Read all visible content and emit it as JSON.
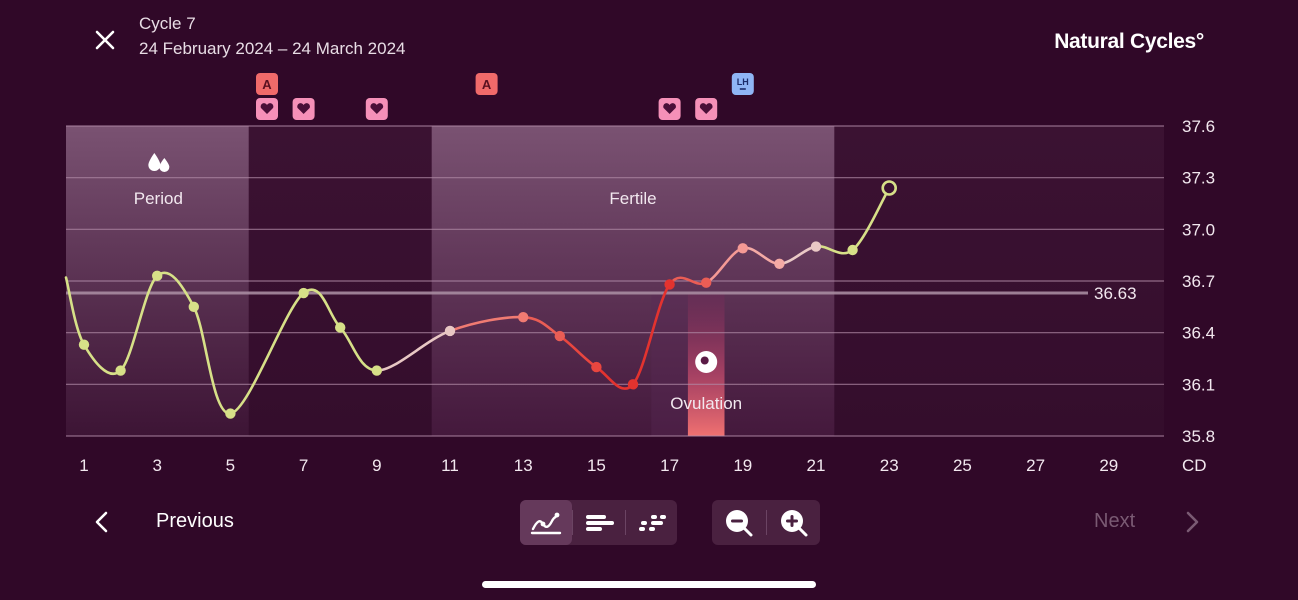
{
  "header": {
    "close_icon": "close-icon",
    "cycle_title": "Cycle 7",
    "date_range": "24 February 2024 – 24 March 2024",
    "brand": "Natural Cycles°"
  },
  "chart_data": {
    "type": "line",
    "xlabel": "CD",
    "ylim": [
      35.8,
      37.6
    ],
    "y_ticks": [
      "37.6",
      "37.3",
      "37.0",
      "36.7",
      "36.4",
      "36.1",
      "35.8"
    ],
    "x_ticks": [
      "1",
      "3",
      "5",
      "7",
      "9",
      "11",
      "13",
      "15",
      "17",
      "19",
      "21",
      "23",
      "25",
      "27",
      "29"
    ],
    "x_range": [
      1,
      30
    ],
    "grid": true,
    "coverline": {
      "value": 36.63,
      "label": "36.63"
    },
    "phases": [
      {
        "name": "period",
        "label": "Period",
        "icon": "drops-icon",
        "from": 1,
        "to": 5
      },
      {
        "name": "fertile",
        "label": "Fertile",
        "from": 11,
        "to": 21
      },
      {
        "name": "ovulation",
        "label": "Ovulation",
        "icon": "egg-icon",
        "day": 18
      }
    ],
    "series": [
      {
        "points": [
          {
            "x": 1,
            "y": 36.33,
            "color": "#d7e088"
          },
          {
            "x": 2,
            "y": 36.18,
            "color": "#d7e088"
          },
          {
            "x": 3,
            "y": 36.73,
            "color": "#d7e088"
          },
          {
            "x": 4,
            "y": 36.55,
            "color": "#d7e088"
          },
          {
            "x": 5,
            "y": 35.93,
            "color": "#d7e088"
          },
          {
            "x": 7,
            "y": 36.63,
            "color": "#d7e088"
          },
          {
            "x": 8,
            "y": 36.43,
            "color": "#d7e088"
          },
          {
            "x": 9,
            "y": 36.18,
            "color": "#d7e088"
          },
          {
            "x": 11,
            "y": 36.41,
            "color": "#e8c7c4"
          },
          {
            "x": 13,
            "y": 36.49,
            "color": "#f07b72"
          },
          {
            "x": 14,
            "y": 36.38,
            "color": "#ea5d55"
          },
          {
            "x": 15,
            "y": 36.2,
            "color": "#e8463f"
          },
          {
            "x": 16,
            "y": 36.1,
            "color": "#e3332f"
          },
          {
            "x": 17,
            "y": 36.68,
            "color": "#e3332f"
          },
          {
            "x": 18,
            "y": 36.69,
            "color": "#ea5d55"
          },
          {
            "x": 19,
            "y": 36.89,
            "color": "#f59a95"
          },
          {
            "x": 20,
            "y": 36.8,
            "color": "#f4aaa5"
          },
          {
            "x": 21,
            "y": 36.9,
            "color": "#eac9c6"
          },
          {
            "x": 22,
            "y": 36.88,
            "color": "#d7e088"
          },
          {
            "x": 23,
            "y": 37.24,
            "color": "#d7e088",
            "hollow": true
          }
        ]
      }
    ],
    "markers": [
      {
        "day": 6,
        "row": 1,
        "type": "A",
        "label": "A"
      },
      {
        "day": 6,
        "row": 2,
        "type": "heart",
        "label": ""
      },
      {
        "day": 7,
        "row": 2,
        "type": "heart",
        "label": ""
      },
      {
        "day": 9,
        "row": 2,
        "type": "heart",
        "label": ""
      },
      {
        "day": 12,
        "row": 1,
        "type": "A",
        "label": "A"
      },
      {
        "day": 17,
        "row": 2,
        "type": "heart",
        "label": ""
      },
      {
        "day": 18,
        "row": 2,
        "type": "heart",
        "label": ""
      },
      {
        "day": 19,
        "row": 1,
        "type": "LH",
        "label": "LH"
      }
    ],
    "colors": {
      "period_band": "#5e3656",
      "fertile_band": "#694060",
      "grid": "#b08aa6",
      "coverline": "#a88ca1",
      "heart_bg": "#f590b8",
      "a_bg": "#f06a6a",
      "lh_bg": "#8fb5f5"
    }
  },
  "bottom": {
    "previous_label": "Previous",
    "next_label": "Next",
    "chevron_left_icon": "chevron-left-icon",
    "chevron_right_icon": "chevron-right-icon",
    "view_buttons": [
      {
        "name": "line-graph-view",
        "icon": "line-graph-icon",
        "active": true
      },
      {
        "name": "bar-view",
        "icon": "bars-icon",
        "active": false
      },
      {
        "name": "dots-view",
        "icon": "dots-icon",
        "active": false
      }
    ],
    "zoom_buttons": [
      {
        "name": "zoom-out",
        "icon": "zoom-out-icon"
      },
      {
        "name": "zoom-in",
        "icon": "zoom-in-icon"
      }
    ]
  }
}
